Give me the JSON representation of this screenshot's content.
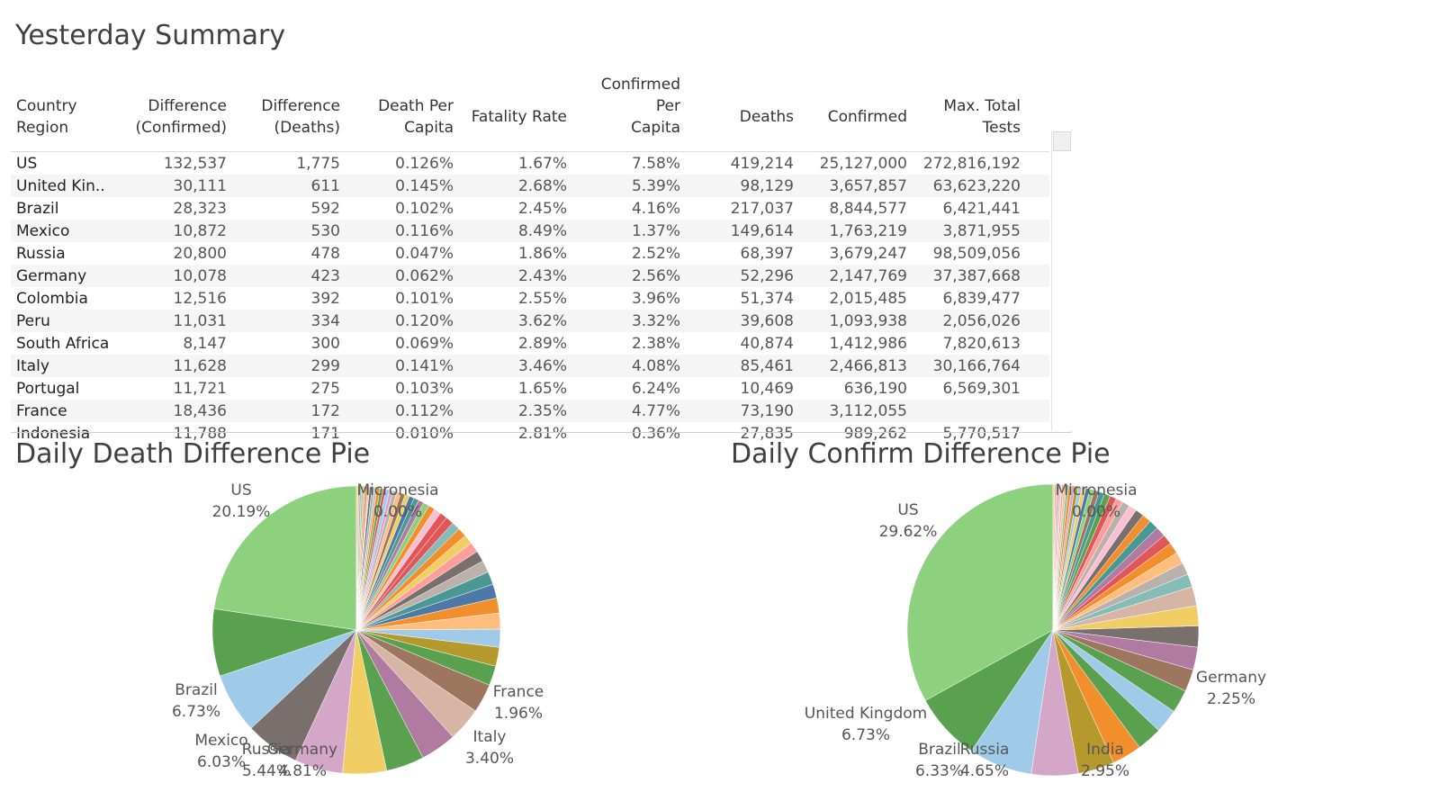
{
  "summary": {
    "title": "Yesterday Summary",
    "columns": [
      {
        "line1": "Country",
        "line2": "Region"
      },
      {
        "line1": "Difference",
        "line2": "(Confirmed)"
      },
      {
        "line1": "Difference",
        "line2": "(Deaths)"
      },
      {
        "line1": "Death Per",
        "line2": "Capita"
      },
      {
        "line1": "Fatality Rate",
        "line2": ""
      },
      {
        "line1": "Confirmed Per",
        "line2": "Capita"
      },
      {
        "line1": "Deaths",
        "line2": ""
      },
      {
        "line1": "Confirmed",
        "line2": ""
      },
      {
        "line1": "Max. Total",
        "line2": "Tests"
      }
    ],
    "rows": [
      [
        "US",
        "132,537",
        "1,775",
        "0.126%",
        "1.67%",
        "7.58%",
        "419,214",
        "25,127,000",
        "272,816,192"
      ],
      [
        "United Kin..",
        "30,111",
        "611",
        "0.145%",
        "2.68%",
        "5.39%",
        "98,129",
        "3,657,857",
        "63,623,220"
      ],
      [
        "Brazil",
        "28,323",
        "592",
        "0.102%",
        "2.45%",
        "4.16%",
        "217,037",
        "8,844,577",
        "6,421,441"
      ],
      [
        "Mexico",
        "10,872",
        "530",
        "0.116%",
        "8.49%",
        "1.37%",
        "149,614",
        "1,763,219",
        "3,871,955"
      ],
      [
        "Russia",
        "20,800",
        "478",
        "0.047%",
        "1.86%",
        "2.52%",
        "68,397",
        "3,679,247",
        "98,509,056"
      ],
      [
        "Germany",
        "10,078",
        "423",
        "0.062%",
        "2.43%",
        "2.56%",
        "52,296",
        "2,147,769",
        "37,387,668"
      ],
      [
        "Colombia",
        "12,516",
        "392",
        "0.101%",
        "2.55%",
        "3.96%",
        "51,374",
        "2,015,485",
        "6,839,477"
      ],
      [
        "Peru",
        "11,031",
        "334",
        "0.120%",
        "3.62%",
        "3.32%",
        "39,608",
        "1,093,938",
        "2,056,026"
      ],
      [
        "South Africa",
        "8,147",
        "300",
        "0.069%",
        "2.89%",
        "2.38%",
        "40,874",
        "1,412,986",
        "7,820,613"
      ],
      [
        "Italy",
        "11,628",
        "299",
        "0.141%",
        "3.46%",
        "4.08%",
        "85,461",
        "2,466,813",
        "30,166,764"
      ],
      [
        "Portugal",
        "11,721",
        "275",
        "0.103%",
        "1.65%",
        "6.24%",
        "10,469",
        "636,190",
        "6,569,301"
      ],
      [
        "France",
        "18,436",
        "172",
        "0.112%",
        "2.35%",
        "4.77%",
        "73,190",
        "3,112,055",
        ""
      ],
      [
        "Indonesia",
        "11,788",
        "171",
        "0.010%",
        "2.81%",
        "0.36%",
        "27,835",
        "989,262",
        "5,770,517"
      ]
    ]
  },
  "chart_data": [
    {
      "type": "pie",
      "title": "Daily Death Difference Pie",
      "slices": [
        {
          "label": "US",
          "value": 20.19,
          "color": "#8DD17E"
        },
        {
          "label": "Brazil",
          "value": 6.73,
          "color": "#59A14F"
        },
        {
          "label": "Mexico",
          "value": 6.03,
          "color": "#A0CBE8"
        },
        {
          "label": "Russia",
          "value": 5.44,
          "color": "#79706E"
        },
        {
          "label": "Germany",
          "value": 4.81,
          "color": "#D4A6C8"
        },
        {
          "label": "",
          "value": 4.4,
          "color": "#F1CE63"
        },
        {
          "label": "",
          "value": 3.8,
          "color": "#59A14F"
        },
        {
          "label": "",
          "value": 3.6,
          "color": "#B07AA1"
        },
        {
          "label": "Italy",
          "value": 3.4,
          "color": "#D7B5A6"
        },
        {
          "label": "",
          "value": 2.9,
          "color": "#9D7660"
        },
        {
          "label": "France",
          "value": 1.96,
          "color": "#59A14F"
        },
        {
          "label": "",
          "value": 1.9,
          "color": "#B6992D"
        },
        {
          "label": "",
          "value": 1.8,
          "color": "#A0CBE8"
        },
        {
          "label": "",
          "value": 1.6,
          "color": "#FFBE7D"
        },
        {
          "label": "",
          "value": 1.5,
          "color": "#F28E2B"
        },
        {
          "label": "",
          "value": 1.4,
          "color": "#4E79A7"
        },
        {
          "label": "",
          "value": 1.3,
          "color": "#499894"
        },
        {
          "label": "",
          "value": 1.2,
          "color": "#BAB0AC"
        },
        {
          "label": "",
          "value": 1.1,
          "color": "#79706E"
        },
        {
          "label": "",
          "value": 1.0,
          "color": "#FF9D9A"
        },
        {
          "label": "",
          "value": 0.95,
          "color": "#F1CE63"
        },
        {
          "label": "",
          "value": 0.9,
          "color": "#F28E2B"
        },
        {
          "label": "",
          "value": 0.85,
          "color": "#86BCB6"
        },
        {
          "label": "",
          "value": 0.8,
          "color": "#E15759"
        },
        {
          "label": "",
          "value": 0.75,
          "color": "#E15759"
        },
        {
          "label": "",
          "value": 0.7,
          "color": "#FABFD2"
        },
        {
          "label": "",
          "value": 0.65,
          "color": "#F28E2B"
        },
        {
          "label": "",
          "value": 0.6,
          "color": "#8DD17E"
        },
        {
          "label": "",
          "value": 0.55,
          "color": "#B07AA1"
        },
        {
          "label": "",
          "value": 0.5,
          "color": "#499894"
        },
        {
          "label": "",
          "value": 0.5,
          "color": "#4E79A7"
        },
        {
          "label": "",
          "value": 0.45,
          "color": "#F1CE63"
        },
        {
          "label": "",
          "value": 0.45,
          "color": "#9D7660"
        },
        {
          "label": "",
          "value": 0.4,
          "color": "#FFBE7D"
        },
        {
          "label": "",
          "value": 0.4,
          "color": "#BAB0AC"
        },
        {
          "label": "",
          "value": 0.35,
          "color": "#D4A6C8"
        },
        {
          "label": "",
          "value": 0.35,
          "color": "#A0CBE8"
        },
        {
          "label": "",
          "value": 0.3,
          "color": "#E15759"
        },
        {
          "label": "",
          "value": 0.3,
          "color": "#59A14F"
        },
        {
          "label": "",
          "value": 0.3,
          "color": "#F28E2B"
        },
        {
          "label": "",
          "value": 0.25,
          "color": "#D7B5A6"
        },
        {
          "label": "",
          "value": 0.25,
          "color": "#86BCB6"
        },
        {
          "label": "",
          "value": 0.25,
          "color": "#79706E"
        },
        {
          "label": "",
          "value": 0.2,
          "color": "#FABFD2"
        },
        {
          "label": "",
          "value": 0.2,
          "color": "#B6992D"
        },
        {
          "label": "",
          "value": 0.2,
          "color": "#FF9D9A"
        },
        {
          "label": "",
          "value": 0.2,
          "color": "#8DD17E"
        },
        {
          "label": "",
          "value": 0.2,
          "color": "#BAB0AC"
        },
        {
          "label": "",
          "value": 0.15,
          "color": "#D4A6C8"
        },
        {
          "label": "",
          "value": 0.15,
          "color": "#F1CE63"
        },
        {
          "label": "Micronesia",
          "value": 0.0,
          "color": "#F28E2B"
        }
      ]
    },
    {
      "type": "pie",
      "title": "Daily Confirm Difference Pie",
      "slices": [
        {
          "label": "US",
          "value": 29.62,
          "color": "#8DD17E"
        },
        {
          "label": "United Kingdom",
          "value": 6.73,
          "color": "#59A14F"
        },
        {
          "label": "Brazil",
          "value": 6.33,
          "color": "#A0CBE8"
        },
        {
          "label": "Russia",
          "value": 4.65,
          "color": "#D4A6C8"
        },
        {
          "label": "",
          "value": 3.6,
          "color": "#B6992D"
        },
        {
          "label": "India",
          "value": 2.95,
          "color": "#F28E2B"
        },
        {
          "label": "",
          "value": 2.5,
          "color": "#59A14F"
        },
        {
          "label": "",
          "value": 2.4,
          "color": "#A0CBE8"
        },
        {
          "label": "",
          "value": 2.3,
          "color": "#59A14F"
        },
        {
          "label": "",
          "value": 2.2,
          "color": "#9D7660"
        },
        {
          "label": "Germany",
          "value": 2.25,
          "color": "#B07AA1"
        },
        {
          "label": "",
          "value": 2.1,
          "color": "#79706E"
        },
        {
          "label": "",
          "value": 2.0,
          "color": "#F1CE63"
        },
        {
          "label": "",
          "value": 1.9,
          "color": "#D7B5A6"
        },
        {
          "label": "",
          "value": 1.3,
          "color": "#86BCB6"
        },
        {
          "label": "",
          "value": 1.2,
          "color": "#BAB0AC"
        },
        {
          "label": "",
          "value": 1.15,
          "color": "#FFBE7D"
        },
        {
          "label": "",
          "value": 1.1,
          "color": "#F28E2B"
        },
        {
          "label": "",
          "value": 1.0,
          "color": "#E15759"
        },
        {
          "label": "",
          "value": 1.0,
          "color": "#B07AA1"
        },
        {
          "label": "",
          "value": 0.95,
          "color": "#499894"
        },
        {
          "label": "",
          "value": 0.9,
          "color": "#F28E2B"
        },
        {
          "label": "",
          "value": 0.85,
          "color": "#79706E"
        },
        {
          "label": "",
          "value": 0.8,
          "color": "#FABFD2"
        },
        {
          "label": "",
          "value": 0.75,
          "color": "#BAB0AC"
        },
        {
          "label": "",
          "value": 0.7,
          "color": "#FF9D9A"
        },
        {
          "label": "",
          "value": 0.65,
          "color": "#E15759"
        },
        {
          "label": "",
          "value": 0.6,
          "color": "#59A14F"
        },
        {
          "label": "",
          "value": 0.55,
          "color": "#499894"
        },
        {
          "label": "",
          "value": 0.5,
          "color": "#9D7660"
        },
        {
          "label": "",
          "value": 0.45,
          "color": "#8DD17E"
        },
        {
          "label": "",
          "value": 0.4,
          "color": "#4E79A7"
        },
        {
          "label": "",
          "value": 0.4,
          "color": "#F1CE63"
        },
        {
          "label": "",
          "value": 0.35,
          "color": "#A0CBE8"
        },
        {
          "label": "",
          "value": 0.35,
          "color": "#B6992D"
        },
        {
          "label": "",
          "value": 0.3,
          "color": "#D4A6C8"
        },
        {
          "label": "",
          "value": 0.3,
          "color": "#F28E2B"
        },
        {
          "label": "",
          "value": 0.25,
          "color": "#86BCB6"
        },
        {
          "label": "",
          "value": 0.25,
          "color": "#FFBE7D"
        },
        {
          "label": "",
          "value": 0.2,
          "color": "#D7B5A6"
        },
        {
          "label": "",
          "value": 0.2,
          "color": "#FABFD2"
        },
        {
          "label": "",
          "value": 0.2,
          "color": "#BAB0AC"
        },
        {
          "label": "",
          "value": 0.15,
          "color": "#FF9D9A"
        },
        {
          "label": "",
          "value": 0.15,
          "color": "#D4A6C8"
        },
        {
          "label": "",
          "value": 0.15,
          "color": "#F1CE63"
        },
        {
          "label": "Micronesia",
          "value": 0.0,
          "color": "#F28E2B"
        }
      ]
    }
  ]
}
